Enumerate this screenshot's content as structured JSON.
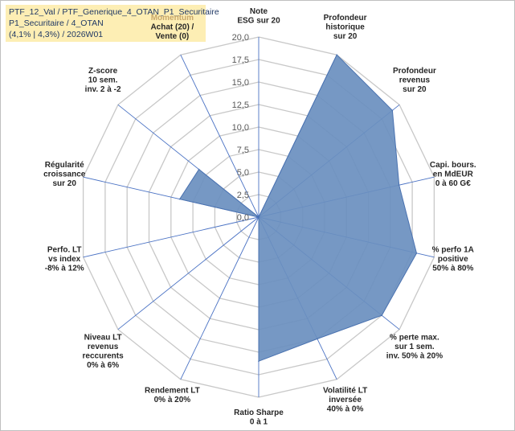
{
  "header": {
    "line1": "PTF_12_Val / PTF_Generique_4_OTAN_P1_Securitaire",
    "line2": "P1_Securitaire / 4_OTAN",
    "line3": "(4,1% | 4,3%) / 2026W01"
  },
  "colors": {
    "fill": "#6a8fbf",
    "stroke": "#4a72b0",
    "grid": "#c8c8c8",
    "spoke": "#4a72c4",
    "highlight_label": "#c9a86a"
  },
  "chart_data": {
    "type": "radar",
    "rmax": 20,
    "tick_values": [
      0,
      2.5,
      5,
      7.5,
      10,
      12.5,
      15,
      17.5,
      20
    ],
    "tick_labels": [
      "0,0",
      "2,5",
      "5,0",
      "7,5",
      "10,0",
      "12,5",
      "15,0",
      "17,5",
      "20,0"
    ],
    "axes": [
      {
        "lines": [
          "Note",
          "ESG sur 20"
        ],
        "value": 0,
        "highlight": false
      },
      {
        "lines": [
          "Profondeur",
          "historique",
          "sur 20"
        ],
        "value": 20,
        "highlight": false
      },
      {
        "lines": [
          "Profondeur",
          "revenus",
          "sur 20"
        ],
        "value": 19,
        "highlight": false
      },
      {
        "lines": [
          "Capi. bours.",
          "en MdEUR",
          "0 à 60 G€"
        ],
        "value": 16,
        "highlight": false
      },
      {
        "lines": [
          "% perfo 1A",
          "positive",
          "50% à 80%"
        ],
        "value": 18,
        "highlight": false
      },
      {
        "lines": [
          "% perte max.",
          "sur 1 sem.",
          "inv. 50% à 20%"
        ],
        "value": 17.5,
        "highlight": false
      },
      {
        "lines": [
          "Volatilité LT",
          "inversée",
          "40% à 0%"
        ],
        "value": 15,
        "highlight": false
      },
      {
        "lines": [
          "Ratio Sharpe",
          "0 à 1"
        ],
        "value": 16,
        "highlight": false
      },
      {
        "lines": [
          "Rendement LT",
          "0% à 20%"
        ],
        "value": 0,
        "highlight": false
      },
      {
        "lines": [
          "Niveau LT",
          "revenus",
          "reccurents",
          "0% à 6%"
        ],
        "value": 0,
        "highlight": false
      },
      {
        "lines": [
          "Perfo. LT",
          "vs index",
          "-8% à 12%"
        ],
        "value": 0,
        "highlight": false
      },
      {
        "lines": [
          "Régularité",
          "croissance",
          "sur 20"
        ],
        "value": 9,
        "highlight": false
      },
      {
        "lines": [
          "Z-score",
          "10 sem.",
          "inv. 2 à -2"
        ],
        "value": 8.5,
        "highlight": false
      },
      {
        "lines": [
          "Momentum",
          "Achat (20) /",
          "Vente (0)"
        ],
        "value": 0,
        "highlight": true
      }
    ]
  }
}
